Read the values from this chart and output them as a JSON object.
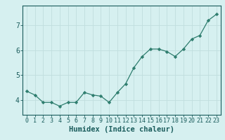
{
  "x": [
    0,
    1,
    2,
    3,
    4,
    5,
    6,
    7,
    8,
    9,
    10,
    11,
    12,
    13,
    14,
    15,
    16,
    17,
    18,
    19,
    20,
    21,
    22,
    23
  ],
  "y": [
    4.35,
    4.2,
    3.9,
    3.9,
    3.75,
    3.9,
    3.9,
    4.3,
    4.2,
    4.15,
    3.9,
    4.3,
    4.65,
    5.3,
    5.75,
    6.05,
    6.05,
    5.95,
    5.75,
    6.05,
    6.45,
    6.6,
    7.2,
    7.45
  ],
  "line_color": "#2e7d6e",
  "marker": "D",
  "marker_size": 2.2,
  "bg_color": "#d6f0f0",
  "grid_color": "#c0dede",
  "xlabel": "Humidex (Indice chaleur)",
  "xlabel_color": "#1a5c5c",
  "xlabel_fontsize": 7.5,
  "tick_color": "#1a5c5c",
  "tick_fontsize": 6,
  "yticks": [
    4,
    5,
    6,
    7
  ],
  "ylim": [
    3.4,
    7.8
  ],
  "xlim": [
    -0.5,
    23.5
  ],
  "spine_color": "#1a5c5c"
}
